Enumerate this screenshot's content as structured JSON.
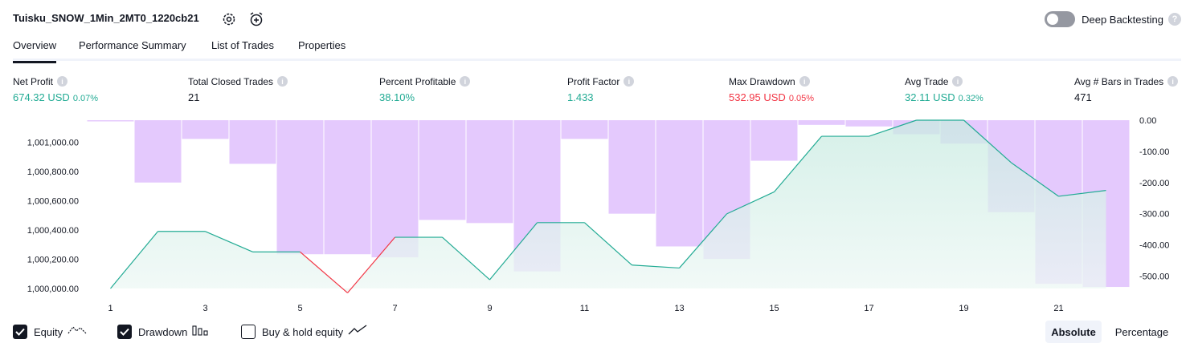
{
  "header": {
    "title": "Tuisku_SNOW_1Min_2MT0_1220cb21",
    "deep_backtesting_label": "Deep Backtesting",
    "deep_backtesting_enabled": false
  },
  "tabs": [
    {
      "label": "Overview",
      "active": true
    },
    {
      "label": "Performance Summary",
      "active": false
    },
    {
      "label": "List of Trades",
      "active": false
    },
    {
      "label": "Properties",
      "active": false
    }
  ],
  "metrics": [
    {
      "label": "Net Profit",
      "value": "674.32 USD",
      "pct": "0.07%",
      "tone": "green"
    },
    {
      "label": "Total Closed Trades",
      "value": "21",
      "pct": "",
      "tone": "dark"
    },
    {
      "label": "Percent Profitable",
      "value": "38.10%",
      "pct": "",
      "tone": "green"
    },
    {
      "label": "Profit Factor",
      "value": "1.433",
      "pct": "",
      "tone": "green"
    },
    {
      "label": "Max Drawdown",
      "value": "532.95 USD",
      "pct": "0.05%",
      "tone": "red"
    },
    {
      "label": "Avg Trade",
      "value": "32.11 USD",
      "pct": "0.32%",
      "tone": "green"
    },
    {
      "label": "Avg # Bars in Trades",
      "value": "471",
      "pct": "",
      "tone": "dark"
    }
  ],
  "chart_data": {
    "type": "line",
    "y_left_ticks": [
      "1,001,000.00",
      "1,000,800.00",
      "1,000,600.00",
      "1,000,400.00",
      "1,000,200.00",
      "1,000,000.00"
    ],
    "y_right_ticks": [
      "0.00",
      "-100.00",
      "-200.00",
      "-300.00",
      "-400.00",
      "-500.00"
    ],
    "x_ticks": [
      "1",
      "3",
      "5",
      "7",
      "9",
      "11",
      "13",
      "15",
      "17",
      "19",
      "21"
    ],
    "x": [
      1,
      2,
      3,
      4,
      5,
      6,
      7,
      8,
      9,
      10,
      11,
      12,
      13,
      14,
      15,
      16,
      17,
      18,
      19,
      20,
      21,
      22
    ],
    "series": [
      {
        "name": "Equity",
        "axis": "left",
        "values": [
          1000000,
          1000390,
          1000390,
          1000250,
          1000250,
          999970,
          1000350,
          1000350,
          1000060,
          1000450,
          1000450,
          1000160,
          1000140,
          1000510,
          1000660,
          1001040,
          1001040,
          1001150,
          1001150,
          1000860,
          1000630,
          1000670
        ]
      },
      {
        "name": "Drawdown",
        "axis": "right",
        "values": [
          0,
          -200,
          -60,
          -140,
          -430,
          -430,
          -440,
          -320,
          -330,
          -485,
          -60,
          -300,
          -405,
          -445,
          -130,
          -15,
          -20,
          -45,
          -75,
          -295,
          -525,
          -535
        ]
      }
    ],
    "ylim_left": [
      1000000,
      1001150
    ],
    "ylim_right": [
      -540,
      0
    ],
    "colors": {
      "equity_line": "#22ab94",
      "equity_fill": "#c8ebe1",
      "drawdown_bar": "#e1c3fd",
      "drawdown_negative": "#f23645"
    }
  },
  "legend": {
    "equity": {
      "label": "Equity",
      "checked": true
    },
    "drawdown": {
      "label": "Drawdown",
      "checked": true
    },
    "buy_hold": {
      "label": "Buy & hold equity",
      "checked": false
    }
  },
  "modes": {
    "absolute": "Absolute",
    "percentage": "Percentage",
    "active": "absolute"
  }
}
